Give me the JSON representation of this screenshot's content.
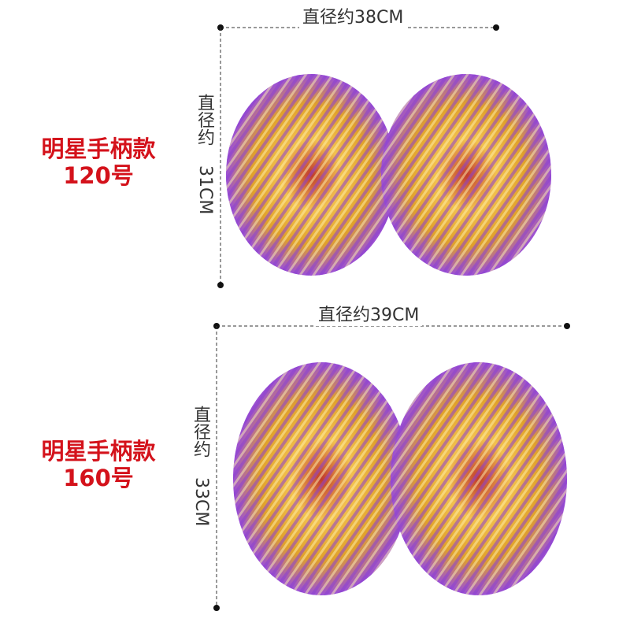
{
  "top_product": {
    "name_line1": "明星手柄款",
    "name_line2": "120号",
    "width_label": "直径约38CM",
    "height_label_cjk": "直径约",
    "height_label_value": "31CM"
  },
  "bottom_product": {
    "name_line1": "明星手柄款",
    "name_line2": "160号",
    "width_label": "直径约39CM",
    "height_label_cjk": "直径约",
    "height_label_value": "33CM"
  },
  "colors": {
    "label_red": "#d4121b",
    "gold": "#e8b33a",
    "purple": "#8a3fd1",
    "dim_line": "#333333"
  }
}
